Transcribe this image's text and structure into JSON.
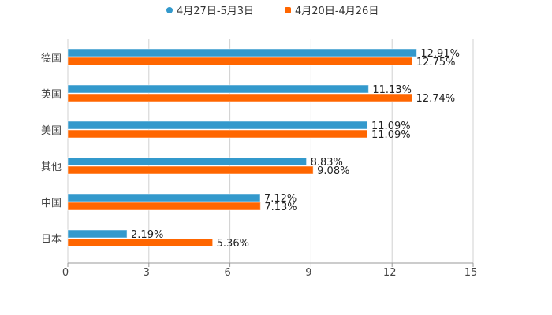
{
  "chart_data": {
    "type": "bar",
    "orientation": "horizontal",
    "title": "",
    "xlabel": "",
    "ylabel": "",
    "categories": [
      "德国",
      "英国",
      "美国",
      "其他",
      "中国",
      "日本"
    ],
    "series": [
      {
        "name": "4月27日-5月3日",
        "color": "#3399cc",
        "values": [
          12.91,
          11.13,
          11.09,
          8.83,
          7.12,
          2.19
        ],
        "labels": [
          "12.91%",
          "11.13%",
          "11.09%",
          "8.83%",
          "7.12%",
          "2.19%"
        ]
      },
      {
        "name": "4月20日-4月26日",
        "color": "#ff6600",
        "values": [
          12.75,
          12.74,
          11.09,
          9.08,
          7.13,
          5.36
        ],
        "labels": [
          "12.75%",
          "12.74%",
          "11.09%",
          "9.08%",
          "7.13%",
          "5.36%"
        ]
      }
    ],
    "xlim": [
      0,
      15
    ],
    "xticks": [
      "0",
      "3",
      "6",
      "9",
      "12",
      "15"
    ],
    "grid": true,
    "legend": "top-center"
  }
}
